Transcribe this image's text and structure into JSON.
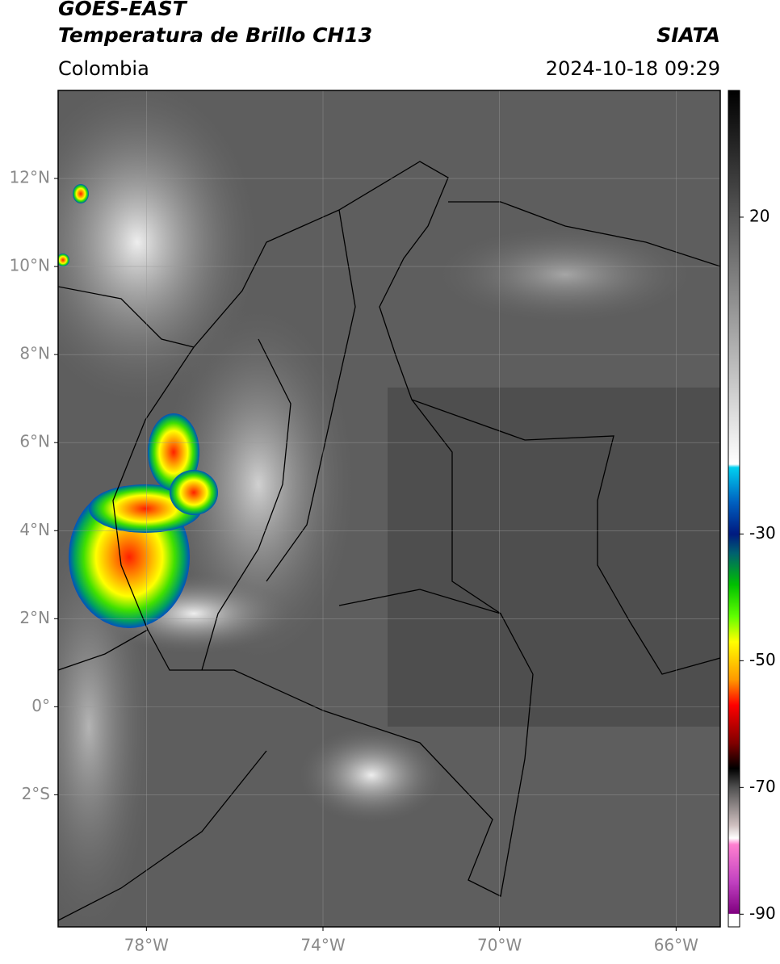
{
  "header": {
    "title": "GOES-EAST",
    "subtitle": "Temperatura de Brillo CH13",
    "source": "SIATA",
    "region": "Colombia",
    "datetime": "2024-10-18 09:29"
  },
  "map": {
    "lonlim": [
      -80,
      -65
    ],
    "latlim": [
      -5,
      14
    ],
    "grid": true,
    "xticks": [
      {
        "value": -78,
        "label": "78°W"
      },
      {
        "value": -74,
        "label": "74°W"
      },
      {
        "value": -70,
        "label": "70°W"
      },
      {
        "value": -66,
        "label": "66°W"
      }
    ],
    "yticks": [
      {
        "value": 12,
        "label": "12°N"
      },
      {
        "value": 10,
        "label": "10°N"
      },
      {
        "value": 8,
        "label": "8°N"
      },
      {
        "value": 6,
        "label": "6°N"
      },
      {
        "value": 4,
        "label": "4°N"
      },
      {
        "value": 2,
        "label": "2°N"
      },
      {
        "value": 0,
        "label": "0°"
      },
      {
        "value": -2,
        "label": "2°S"
      }
    ]
  },
  "colorbar": {
    "lim": [
      -92,
      40
    ],
    "ticks": [
      20,
      -30,
      -50,
      -70,
      -90
    ],
    "stops": [
      {
        "value": 40,
        "color": "#000000"
      },
      {
        "value": -19,
        "color": "#ffffff"
      },
      {
        "value": -19.5,
        "color": "#00d0f0"
      },
      {
        "value": -25,
        "color": "#0060c0"
      },
      {
        "value": -30,
        "color": "#001a80"
      },
      {
        "value": -33,
        "color": "#006070"
      },
      {
        "value": -38,
        "color": "#00c000"
      },
      {
        "value": -43,
        "color": "#60ff00"
      },
      {
        "value": -47,
        "color": "#ffff00"
      },
      {
        "value": -53,
        "color": "#ff9900"
      },
      {
        "value": -57,
        "color": "#ff0000"
      },
      {
        "value": -63,
        "color": "#800000"
      },
      {
        "value": -67,
        "color": "#000000"
      },
      {
        "value": -70,
        "color": "#505050"
      },
      {
        "value": -76,
        "color": "#d0c0c0"
      },
      {
        "value": -78,
        "color": "#ffffff"
      },
      {
        "value": -79,
        "color": "#ff80d0"
      },
      {
        "value": -85,
        "color": "#c040c0"
      },
      {
        "value": -89.9,
        "color": "#800080"
      },
      {
        "value": -90,
        "color": "#ffffff"
      },
      {
        "value": -92,
        "color": "#ffffff"
      }
    ]
  }
}
